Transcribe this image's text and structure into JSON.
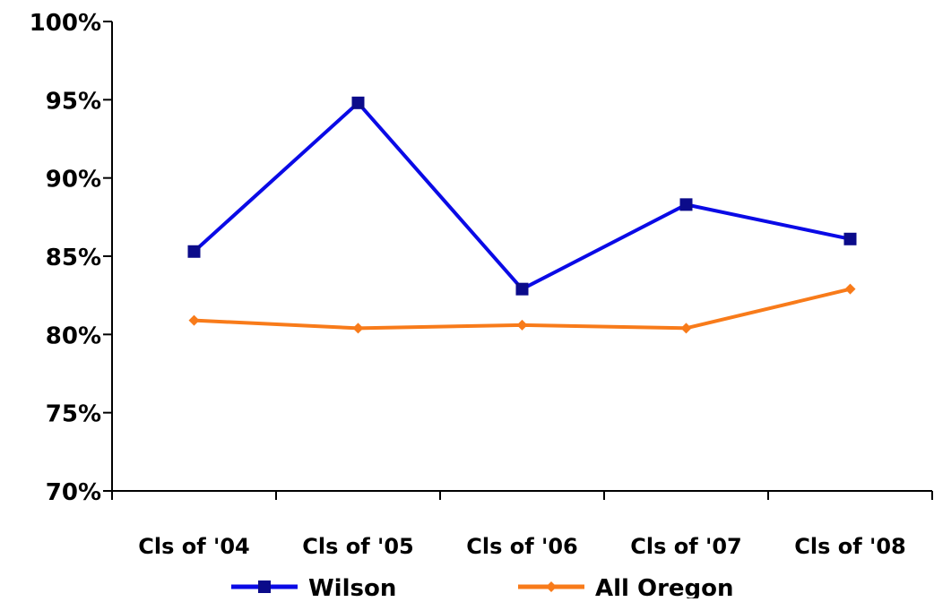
{
  "chart_data": {
    "type": "line",
    "title": "",
    "xlabel": "",
    "ylabel": "",
    "categories": [
      "Cls of '04",
      "Cls of '05",
      "Cls of '06",
      "Cls of '07",
      "Cls of '08"
    ],
    "ylim": [
      70,
      100
    ],
    "y_ticks": [
      70,
      75,
      80,
      85,
      90,
      95,
      100
    ],
    "y_tick_labels": [
      "70%",
      "75%",
      "80%",
      "85%",
      "90%",
      "95%",
      "100%"
    ],
    "grid": false,
    "legend_position": "bottom",
    "series": [
      {
        "name": "Wilson",
        "values": [
          85.3,
          94.8,
          82.9,
          88.3,
          86.1
        ],
        "color": "#0a0ae6",
        "marker_color": "#0b0b8a",
        "marker": "square"
      },
      {
        "name": "All Oregon",
        "values": [
          80.9,
          80.4,
          80.6,
          80.4,
          82.9
        ],
        "color": "#f87b1a",
        "marker_color": "#f87b1a",
        "marker": "diamond"
      }
    ]
  }
}
